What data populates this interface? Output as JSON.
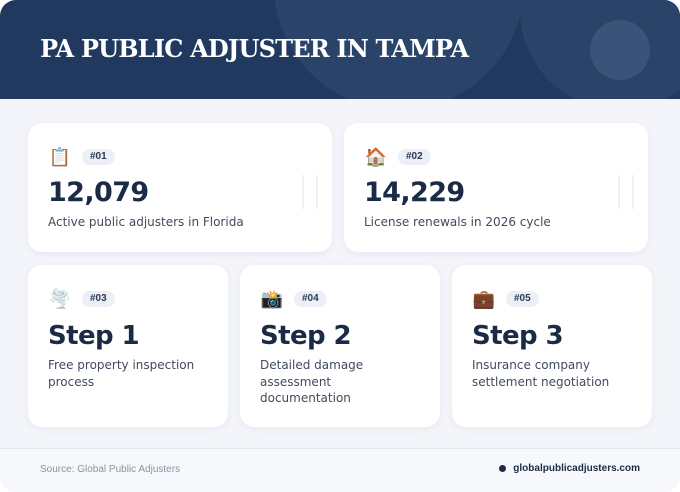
{
  "header": {
    "title": "PA PUBLIC ADJUSTER IN TAMPA"
  },
  "stats": [
    {
      "icon": "clipboard-icon",
      "glyph": "📋",
      "badge": "#01",
      "value": "12,079",
      "label": "Active public adjusters in Florida"
    },
    {
      "icon": "house-icon",
      "glyph": "🏠",
      "badge": "#02",
      "value": "14,229",
      "label": "License renewals in 2026 cycle"
    }
  ],
  "steps": [
    {
      "icon": "tornado-icon",
      "glyph": "🌪️",
      "badge": "#03",
      "value": "Step 1",
      "label": "Free property inspection process"
    },
    {
      "icon": "camera-icon",
      "glyph": "📸",
      "badge": "#04",
      "value": "Step 2",
      "label": "Detailed damage assessment documentation"
    },
    {
      "icon": "briefcase-icon",
      "glyph": "💼",
      "badge": "#05",
      "value": "Step 3",
      "label": "Insurance company settlement negotiation"
    }
  ],
  "footer": {
    "source": "Source: Global Public Adjusters",
    "site": "globalpublicadjusters.com"
  },
  "colors": {
    "header_bg": "#21395f",
    "accent_dark": "#1b2b45",
    "badge_bg": "#eceff5",
    "page_bg": "#f3f5fa"
  }
}
